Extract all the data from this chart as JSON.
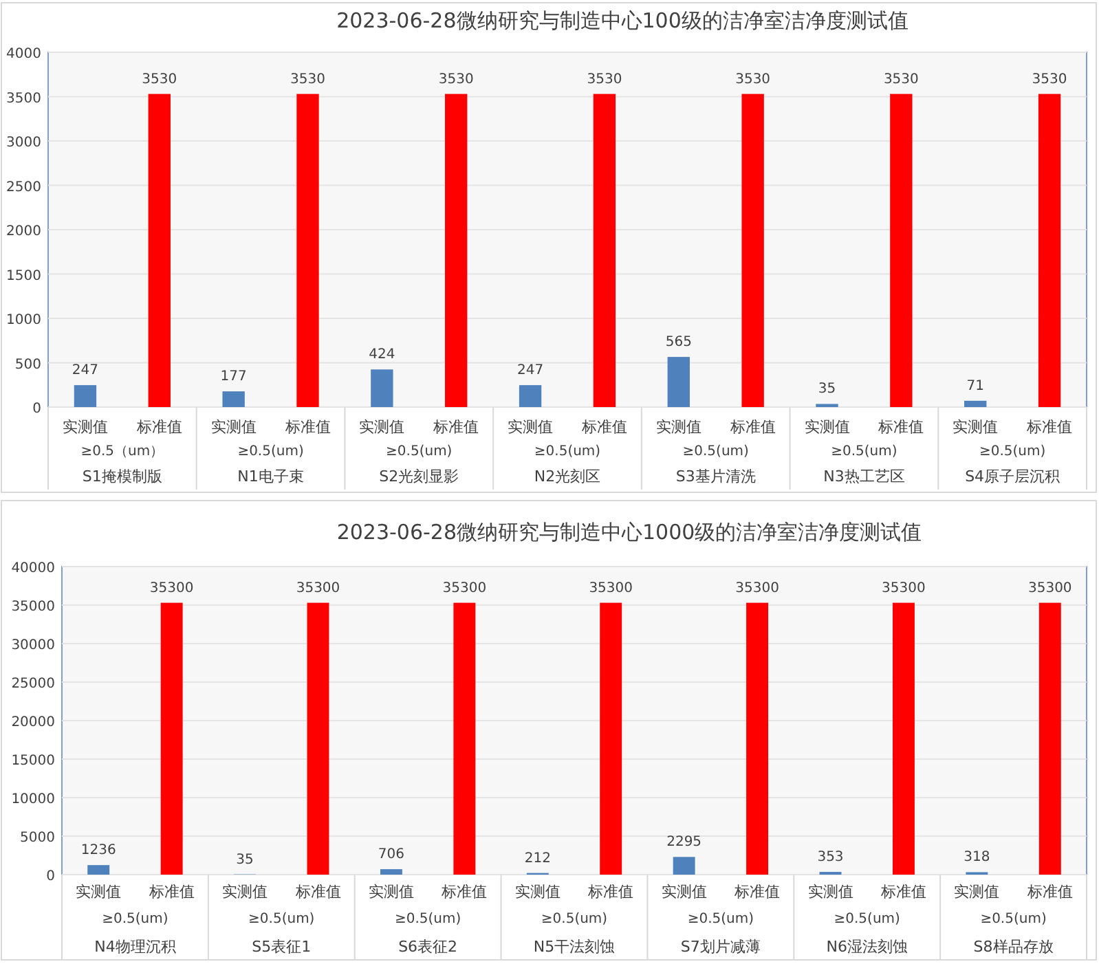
{
  "chart_data": [
    {
      "type": "bar",
      "title": "2023-06-28微纳研究与制造中心100级的洁净室洁净度测试值",
      "categories": [
        "实测值",
        "标准值",
        "实测值",
        "标准值",
        "实测值",
        "标准值",
        "实测值",
        "标准值",
        "实测值",
        "标准值",
        "实测值",
        "标准值",
        "实测值",
        "标准值"
      ],
      "values": [
        247,
        3530,
        177,
        3530,
        424,
        3530,
        247,
        3530,
        565,
        3530,
        35,
        3530,
        71,
        3530
      ],
      "colors": [
        "#4f81bd",
        "#ff0000",
        "#4f81bd",
        "#ff0000",
        "#4f81bd",
        "#ff0000",
        "#4f81bd",
        "#ff0000",
        "#4f81bd",
        "#ff0000",
        "#4f81bd",
        "#ff0000",
        "#4f81bd",
        "#ff0000"
      ],
      "annotations": [
        "≥0.5（um）",
        "S1掩模制版",
        "≥0.5(um)",
        "N1电子束",
        "≥0.5(um)",
        "S2光刻显影",
        "≥0.5(um)",
        "N2光刻区",
        "≥0.5(um)",
        "S3基片清洗",
        "≥0.5(um)",
        "N3热工艺区",
        "≥0.5(um)",
        "S4原子层沉积"
      ],
      "ylim": [
        0,
        4000
      ],
      "yticks": [
        0,
        500,
        1000,
        1500,
        2000,
        2500,
        3000,
        3500,
        4000
      ],
      "data_labels": true,
      "grid": "y"
    },
    {
      "type": "bar",
      "title": "2023-06-28微纳研究与制造中心1000级的洁净室洁净度测试值",
      "categories": [
        "实测值",
        "标准值",
        "实测值",
        "标准值",
        "实测值",
        "标准值",
        "实测值",
        "标准值",
        "实测值",
        "标准值",
        "实测值",
        "标准值",
        "实测值",
        "标准值"
      ],
      "values": [
        1236,
        35300,
        35,
        35300,
        706,
        35300,
        212,
        35300,
        2295,
        35300,
        353,
        35300,
        318,
        35300
      ],
      "colors": [
        "#4f81bd",
        "#ff0000",
        "#4f81bd",
        "#ff0000",
        "#4f81bd",
        "#ff0000",
        "#4f81bd",
        "#ff0000",
        "#4f81bd",
        "#ff0000",
        "#4f81bd",
        "#ff0000",
        "#4f81bd",
        "#ff0000"
      ],
      "annotations": [
        "≥0.5(um)",
        "N4物理沉积",
        "≥0.5(um)",
        "S5表征1",
        "≥0.5(um)",
        "S6表征2",
        "≥0.5(um)",
        "N5干法刻蚀",
        "≥0.5(um)",
        "S7划片减薄",
        "≥0.5(um)",
        "N6湿法刻蚀",
        "≥0.5(um)",
        "S8样品存放"
      ],
      "ylim": [
        0,
        40000
      ],
      "yticks": [
        0,
        5000,
        10000,
        15000,
        20000,
        25000,
        30000,
        35000,
        40000
      ],
      "data_labels": true,
      "grid": "y"
    }
  ]
}
